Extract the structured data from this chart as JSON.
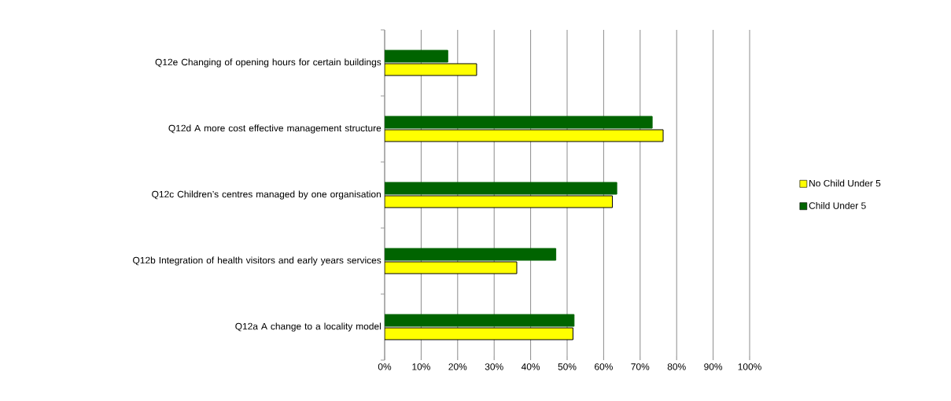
{
  "chart_data": {
    "type": "bar",
    "orientation": "horizontal",
    "categories": [
      "Q12e  Changing of opening hours for certain buildings",
      "Q12d  A more cost effective management structure",
      "Q12c  Children’s centres managed by one organisation",
      "Q12b  Integration of health visitors and early years services",
      "Q12a  A change to a locality model"
    ],
    "series": [
      {
        "name": "No Child Under 5",
        "color": "#ffff00",
        "values": [
          25.2,
          76.3,
          62.4,
          36.2,
          51.6
        ]
      },
      {
        "name": "Child Under 5",
        "color": "#006400",
        "values": [
          17.3,
          73.3,
          63.6,
          46.9,
          51.9
        ]
      }
    ],
    "xlim": [
      0,
      100
    ],
    "xticks": [
      {
        "value": 0,
        "label": "0%"
      },
      {
        "value": 10,
        "label": "10%"
      },
      {
        "value": 20,
        "label": "20%"
      },
      {
        "value": 30,
        "label": "30%"
      },
      {
        "value": 40,
        "label": "40%"
      },
      {
        "value": 50,
        "label": "50%"
      },
      {
        "value": 60,
        "label": "60%"
      },
      {
        "value": 70,
        "label": "70%"
      },
      {
        "value": 80,
        "label": "80%"
      },
      {
        "value": 90,
        "label": "90%"
      },
      {
        "value": 100,
        "label": "100%"
      }
    ],
    "grid": "x",
    "legend": "right"
  }
}
